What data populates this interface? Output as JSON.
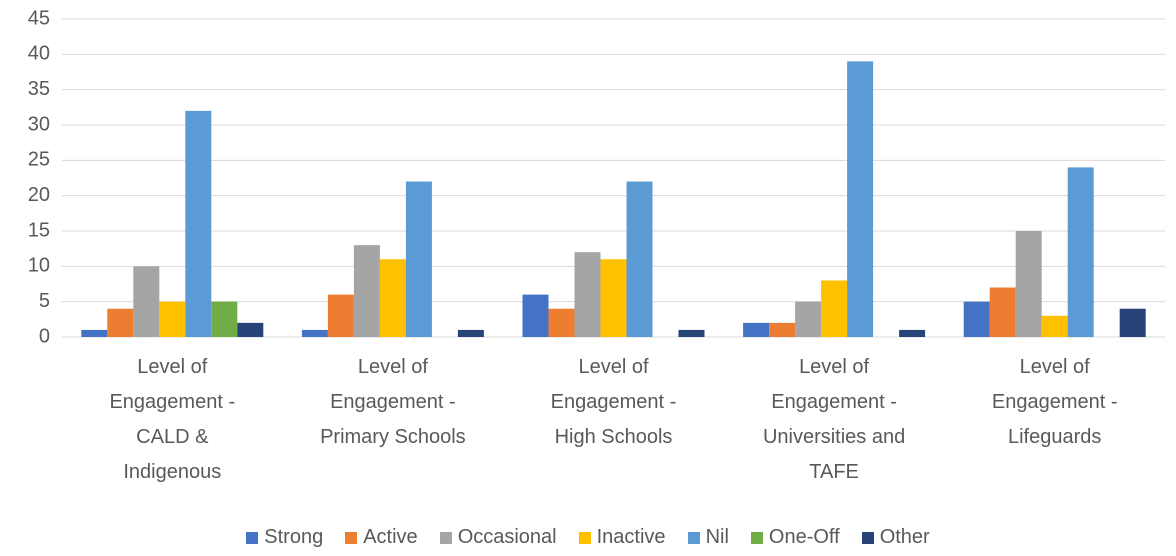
{
  "chart_data": {
    "type": "bar",
    "categories": [
      "Level of Engagement - CALD & Indigenous",
      "Level of Engagement - Primary Schools",
      "Level of Engagement - High Schools",
      "Level of Engagement - Universities and TAFE",
      "Level of Engagement - Lifeguards"
    ],
    "series": [
      {
        "name": "Strong",
        "color": "#4472c4",
        "values": [
          1,
          1,
          6,
          2,
          5
        ]
      },
      {
        "name": "Active",
        "color": "#ed7d31",
        "values": [
          4,
          6,
          4,
          2,
          7
        ]
      },
      {
        "name": "Occasional",
        "color": "#a5a5a5",
        "values": [
          10,
          13,
          12,
          5,
          15
        ]
      },
      {
        "name": "Inactive",
        "color": "#ffc000",
        "values": [
          5,
          11,
          11,
          8,
          3
        ]
      },
      {
        "name": "Nil",
        "color": "#5b9bd5",
        "values": [
          32,
          22,
          22,
          39,
          24
        ]
      },
      {
        "name": "One-Off",
        "color": "#70ad47",
        "values": [
          5,
          0,
          0,
          0,
          0
        ]
      },
      {
        "name": "Other",
        "color": "#264478",
        "values": [
          2,
          1,
          1,
          1,
          4
        ]
      }
    ],
    "ylim": [
      0,
      45
    ],
    "yticks": [
      0,
      5,
      10,
      15,
      20,
      25,
      30,
      35,
      40,
      45
    ],
    "grid": true,
    "legend": "bottom"
  }
}
